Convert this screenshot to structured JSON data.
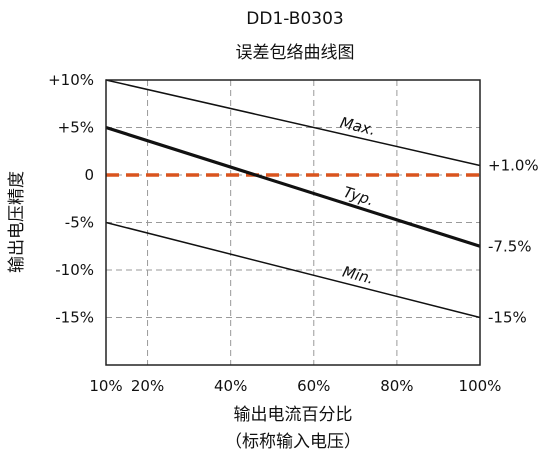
{
  "chart_data": {
    "type": "line",
    "title": "DD1-B0303",
    "subtitle": "误差包络曲线图",
    "xlabel": "输出电流百分比",
    "xlabel_sub": "（标称输入电压）",
    "ylabel": "输出电压精度",
    "xlim": [
      10,
      100
    ],
    "ylim": [
      -20,
      10
    ],
    "x_ticks": [
      {
        "value": 10,
        "label": "10%"
      },
      {
        "value": 20,
        "label": "20%"
      },
      {
        "value": 40,
        "label": "40%"
      },
      {
        "value": 60,
        "label": "60%"
      },
      {
        "value": 80,
        "label": "80%"
      },
      {
        "value": 100,
        "label": "100%"
      }
    ],
    "y_ticks": [
      {
        "value": 10,
        "label": "+10%"
      },
      {
        "value": 5,
        "label": "+5%"
      },
      {
        "value": 0,
        "label": "0"
      },
      {
        "value": -5,
        "label": "-5%"
      },
      {
        "value": -10,
        "label": "-10%"
      },
      {
        "value": -15,
        "label": "-15%"
      }
    ],
    "x_grid": [
      20,
      40,
      60,
      80
    ],
    "y_grid": [
      5,
      0,
      -5,
      -10,
      -15
    ],
    "grid": true,
    "series": [
      {
        "name": "Max.",
        "x": [
          10,
          100
        ],
        "y": [
          10,
          1
        ],
        "color": "#111111",
        "width": 1.5,
        "label_at": 70,
        "end_label": "+1.0%"
      },
      {
        "name": "Typ.",
        "x": [
          10,
          100
        ],
        "y": [
          5,
          -7.5
        ],
        "color": "#111111",
        "width": 3.2,
        "label_at": 70,
        "end_label": "-7.5%"
      },
      {
        "name": "Min.",
        "x": [
          10,
          100
        ],
        "y": [
          -5,
          -15
        ],
        "color": "#111111",
        "width": 1.5,
        "label_at": 70,
        "end_label": "-15%"
      }
    ],
    "reference_line": {
      "y": 0,
      "color": "#d9541e",
      "style": "dashed"
    }
  }
}
